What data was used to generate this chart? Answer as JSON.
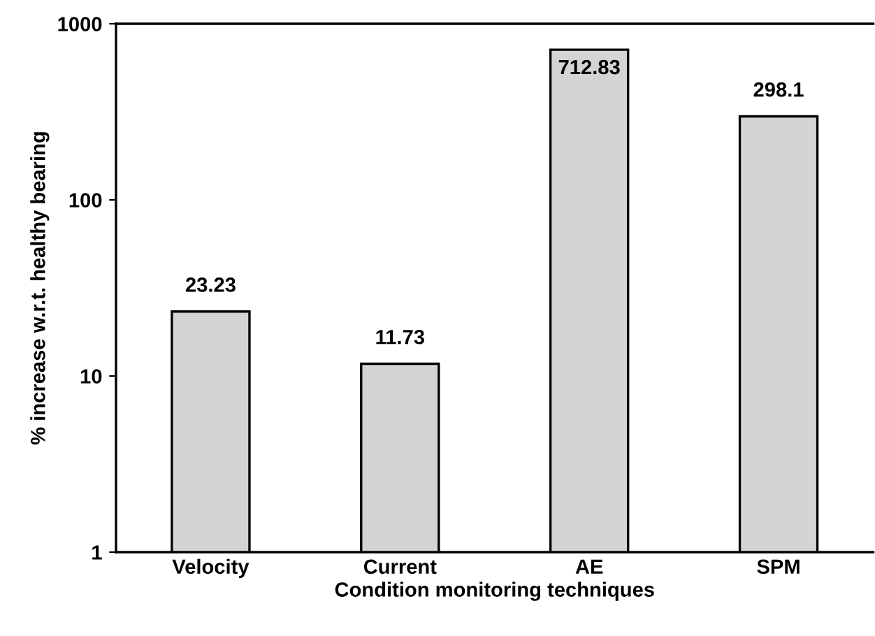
{
  "chart_data": {
    "type": "bar",
    "xlabel": "Condition monitoring techniques",
    "ylabel": "% increase w.r.t. healthy bearing",
    "categories": [
      "Velocity",
      "Current",
      "AE",
      "SPM"
    ],
    "values": [
      23.23,
      11.73,
      712.83,
      298.1
    ],
    "color": "#d4d4d4",
    "log": "y",
    "ylim": [
      1,
      1000
    ],
    "yticks": [
      1,
      10,
      100,
      1000
    ],
    "grid": false,
    "data_labels": true
  }
}
